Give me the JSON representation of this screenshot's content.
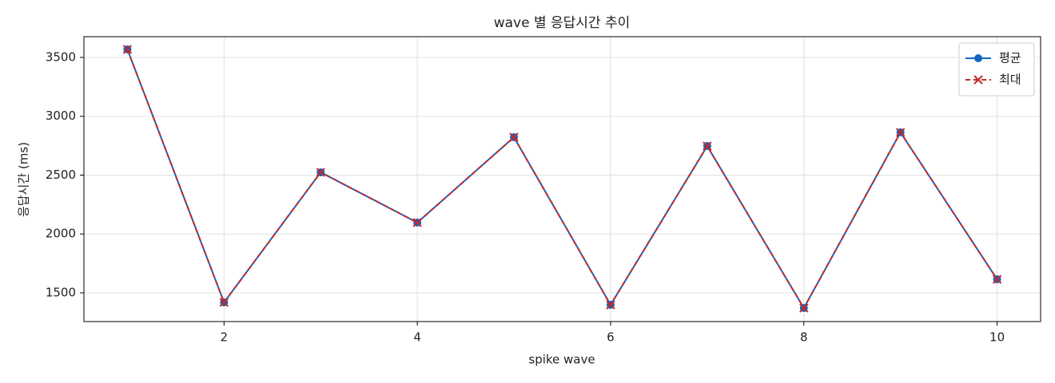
{
  "chart_data": {
    "type": "line",
    "title": "wave 별 응답시간 추이",
    "xlabel": "spike wave",
    "ylabel": "응답시간 (ms)",
    "x": [
      1,
      2,
      3,
      4,
      5,
      6,
      7,
      8,
      9,
      10
    ],
    "series": [
      {
        "name": "평균",
        "color": "#1565c0",
        "marker": "o",
        "linestyle": "solid",
        "values": [
          3568,
          1419,
          2524,
          2097,
          2822,
          1398,
          2747,
          1371,
          2863,
          1615
        ]
      },
      {
        "name": "최대",
        "color": "#c62828",
        "marker": "x",
        "linestyle": "dashed",
        "values": [
          3568,
          1419,
          2524,
          2097,
          2822,
          1398,
          2747,
          1371,
          2863,
          1615
        ]
      }
    ],
    "xlim": [
      0.55,
      10.45
    ],
    "ylim": [
      1256,
      3676
    ],
    "xticks": [
      2,
      4,
      6,
      8,
      10
    ],
    "yticks": [
      1500,
      2000,
      2500,
      3000,
      3500
    ],
    "grid": true,
    "legend": "upper right"
  }
}
